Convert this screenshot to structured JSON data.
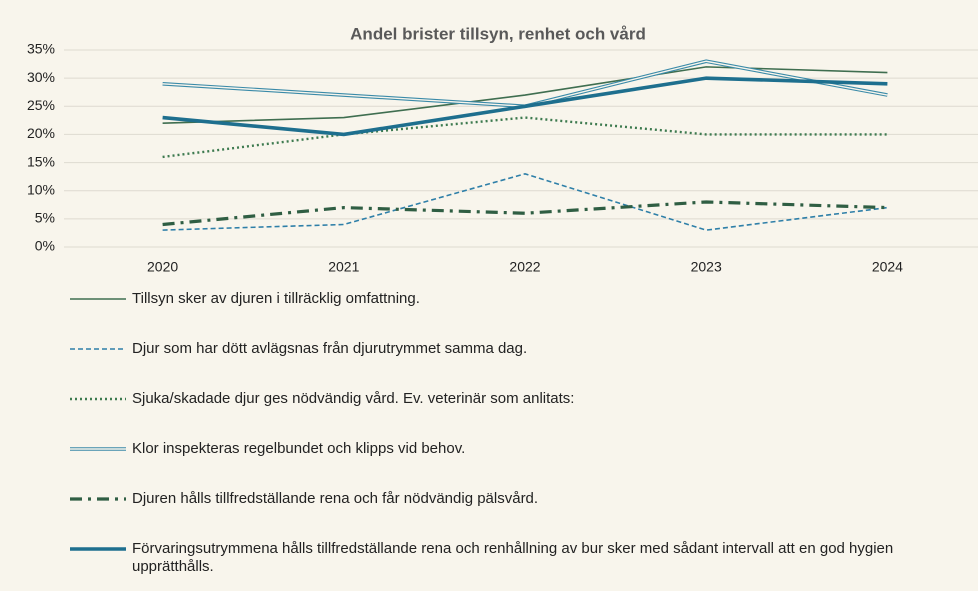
{
  "chart_data": {
    "type": "line",
    "title": "Andel brister tillsyn, renhet och vård",
    "categories": [
      "2020",
      "2021",
      "2022",
      "2023",
      "2024"
    ],
    "ylim": [
      0,
      35
    ],
    "yticks": [
      {
        "value": 0,
        "label": "0%"
      },
      {
        "value": 5,
        "label": "5%"
      },
      {
        "value": 10,
        "label": "10%"
      },
      {
        "value": 15,
        "label": "15%"
      },
      {
        "value": 20,
        "label": "20%"
      },
      {
        "value": 25,
        "label": "25%"
      },
      {
        "value": 30,
        "label": "30%"
      },
      {
        "value": 35,
        "label": "35%"
      }
    ],
    "grid": true,
    "series": [
      {
        "name": "Tillsyn sker av djuren i tillräcklig omfattning.",
        "color": "#3f6e50",
        "style": "solid",
        "values": [
          22,
          23,
          27,
          32,
          31
        ]
      },
      {
        "name": "Djur som har dött avlägsnas från djurutrymmet samma dag.",
        "color": "#2e7fa8",
        "style": "dashed",
        "values": [
          3,
          4,
          13,
          3,
          7
        ]
      },
      {
        "name": "Sjuka/skadade djur ges nödvändig vård. Ev. veterinär som anlitats:",
        "color": "#3d7a4f",
        "style": "dotted",
        "values": [
          16,
          20,
          23,
          20,
          20
        ]
      },
      {
        "name": "Klor inspekteras regelbundet och klipps vid behov.",
        "color": "#3a8aa8",
        "style": "double",
        "values": [
          29,
          27,
          25,
          33,
          27
        ]
      },
      {
        "name": "Djuren hålls tillfredställande rena och får nödvändig pälsvård.",
        "color": "#2f5e43",
        "style": "dashdot",
        "values": [
          4,
          7,
          6,
          8,
          7
        ]
      },
      {
        "name": "Förvaringsutrymmena hålls tillfredställande rena och renhållning av bur sker med sådant intervall att en god hygien upprätthålls.",
        "color": "#1e6f8e",
        "style": "thick",
        "values": [
          23,
          20,
          25,
          30,
          29
        ]
      }
    ]
  }
}
